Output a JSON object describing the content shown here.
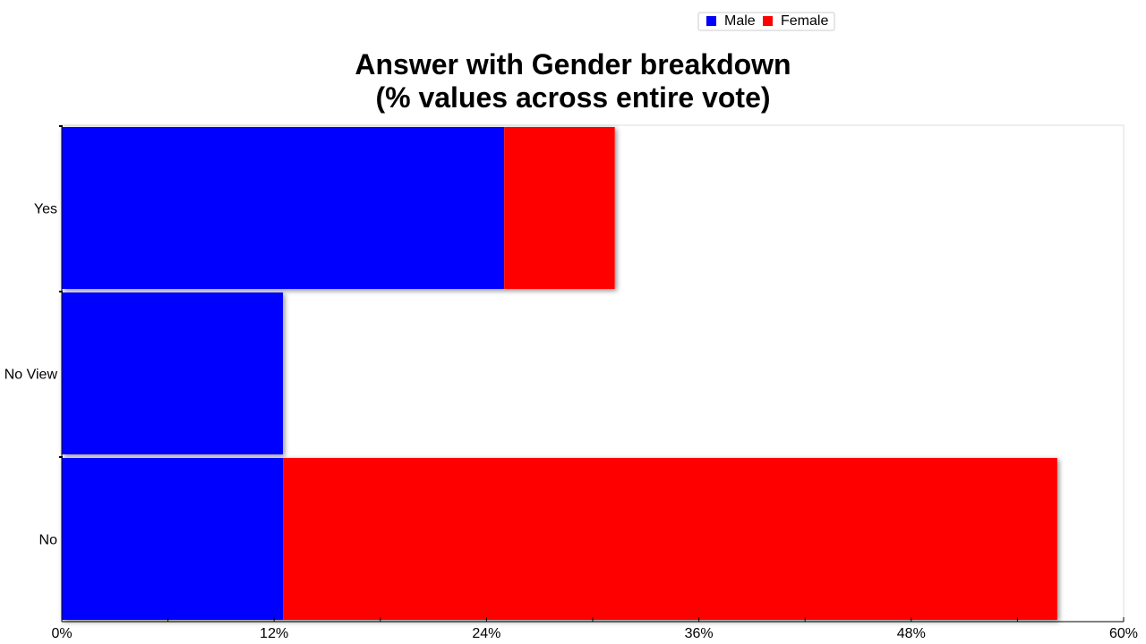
{
  "chart_data": {
    "type": "bar",
    "orientation": "horizontal",
    "stacked": true,
    "title_lines": [
      "Answer with Gender breakdown",
      "(% values across entire vote)"
    ],
    "categories": [
      "Yes",
      "No View",
      "No"
    ],
    "series": [
      {
        "name": "Male",
        "color": "#0000ff",
        "values": [
          25,
          12.5,
          12.5
        ]
      },
      {
        "name": "Female",
        "color": "#ff0000",
        "values": [
          6.25,
          0,
          43.75
        ]
      }
    ],
    "x_ticks": [
      "0%",
      "12%",
      "24%",
      "36%",
      "48%",
      "60%"
    ],
    "x_tick_values": [
      0,
      12,
      24,
      36,
      48,
      60
    ],
    "xlim": [
      0,
      60
    ],
    "grid": false,
    "legend_position": "top"
  }
}
